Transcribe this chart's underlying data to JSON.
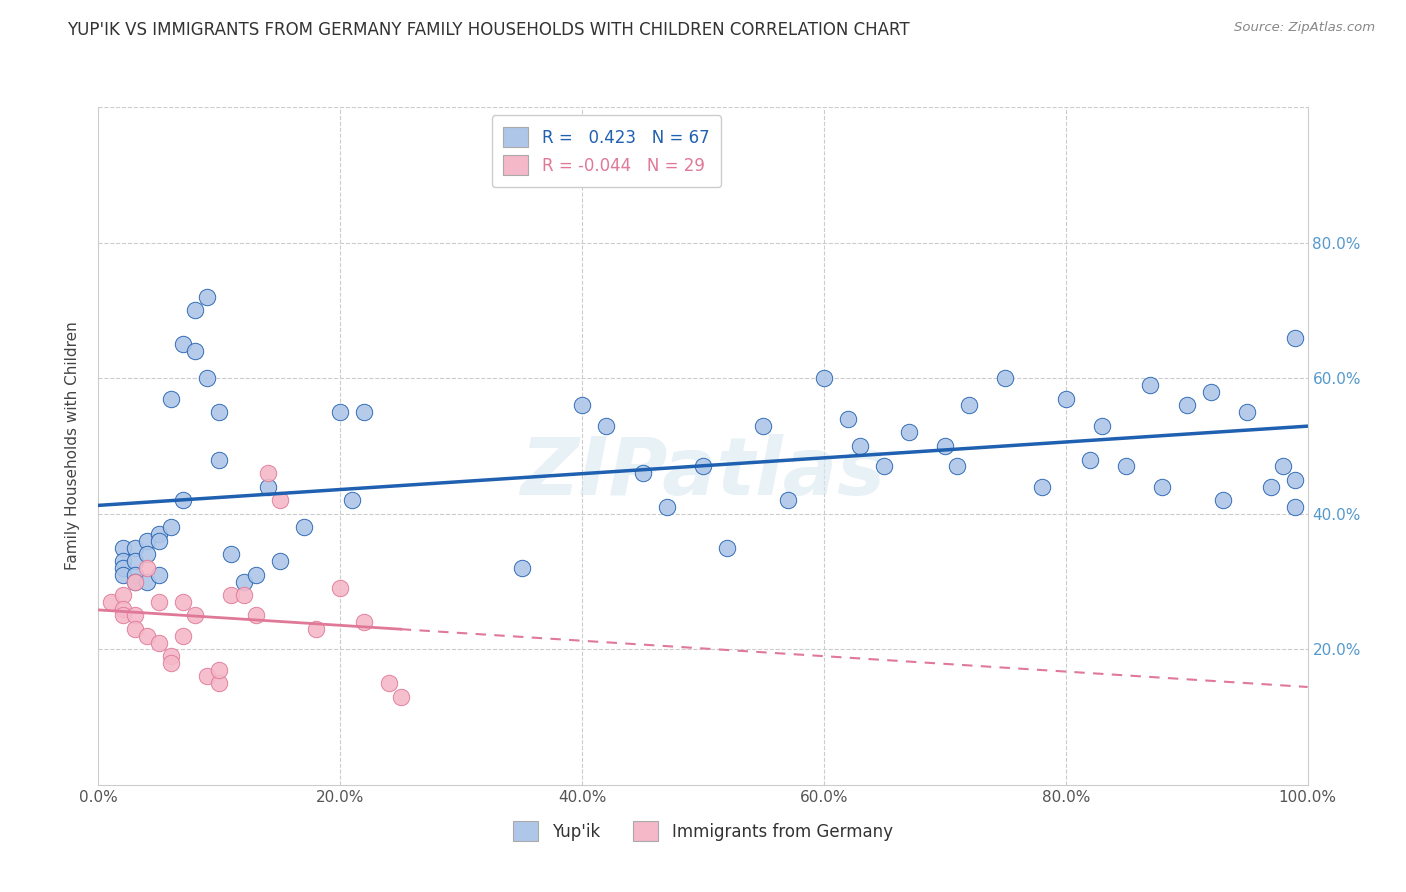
{
  "title": "YUP'IK VS IMMIGRANTS FROM GERMANY FAMILY HOUSEHOLDS WITH CHILDREN CORRELATION CHART",
  "source": "Source: ZipAtlas.com",
  "ylabel": "Family Households with Children",
  "legend_label_1": "Yup'ik",
  "legend_label_2": "Immigrants from Germany",
  "r1": 0.423,
  "n1": 67,
  "r2": -0.044,
  "n2": 29,
  "xlim": [
    0.0,
    100.0
  ],
  "ylim": [
    0.0,
    100.0
  ],
  "xticks": [
    0.0,
    20.0,
    40.0,
    60.0,
    80.0,
    100.0
  ],
  "yticks_right": [
    20.0,
    40.0,
    60.0,
    80.0
  ],
  "xticklabels": [
    "0.0%",
    "20.0%",
    "40.0%",
    "60.0%",
    "80.0%",
    "100.0%"
  ],
  "yticklabels_right": [
    "20.0%",
    "40.0%",
    "60.0%",
    "80.0%"
  ],
  "color_blue": "#aec6e8",
  "color_pink": "#f4b8c8",
  "line_blue": "#2060b0",
  "line_pink": "#e07898",
  "background": "#ffffff",
  "watermark": "ZIPatlas",
  "blue_x": [
    2,
    2,
    2,
    2,
    3,
    3,
    3,
    3,
    4,
    4,
    4,
    5,
    5,
    5,
    6,
    6,
    7,
    7,
    8,
    8,
    9,
    9,
    10,
    10,
    11,
    12,
    13,
    14,
    15,
    17,
    20,
    21,
    22,
    35,
    40,
    42,
    45,
    47,
    50,
    52,
    55,
    57,
    60,
    62,
    63,
    65,
    67,
    70,
    71,
    72,
    75,
    78,
    80,
    82,
    83,
    85,
    87,
    88,
    90,
    92,
    93,
    95,
    97,
    98,
    99,
    99,
    99
  ],
  "blue_y": [
    35,
    33,
    32,
    31,
    35,
    33,
    31,
    30,
    36,
    34,
    30,
    37,
    36,
    31,
    57,
    38,
    65,
    42,
    70,
    64,
    72,
    60,
    55,
    48,
    34,
    30,
    31,
    44,
    33,
    38,
    55,
    42,
    55,
    32,
    56,
    53,
    46,
    41,
    47,
    35,
    53,
    42,
    60,
    54,
    50,
    47,
    52,
    50,
    47,
    56,
    60,
    44,
    57,
    48,
    53,
    47,
    59,
    44,
    56,
    58,
    42,
    55,
    44,
    47,
    41,
    66,
    45
  ],
  "pink_x": [
    1,
    2,
    2,
    2,
    3,
    3,
    3,
    4,
    4,
    5,
    5,
    6,
    6,
    7,
    7,
    8,
    9,
    10,
    10,
    11,
    12,
    13,
    14,
    15,
    18,
    20,
    22,
    24,
    25
  ],
  "pink_y": [
    27,
    28,
    26,
    25,
    30,
    25,
    23,
    32,
    22,
    27,
    21,
    19,
    18,
    27,
    22,
    25,
    16,
    15,
    17,
    28,
    28,
    25,
    46,
    42,
    23,
    29,
    24,
    15,
    13
  ]
}
